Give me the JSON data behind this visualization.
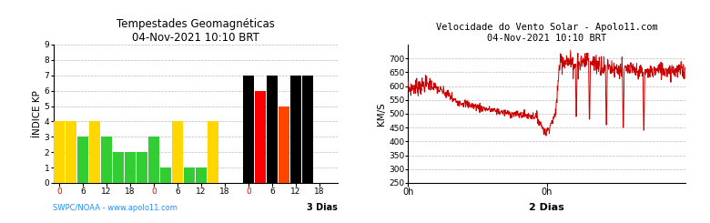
{
  "left": {
    "title": "Tempestades Geomagnéticas",
    "subtitle": "04-Nov-2021 10:10 BRT",
    "ylabel": "ÍNDICE KP",
    "source_label": "SWPC/NOAA - www.apolo11.com",
    "days_label": "3 Dias",
    "ylim": [
      0,
      9
    ],
    "yticks": [
      0,
      1,
      2,
      3,
      4,
      5,
      6,
      7,
      8,
      9
    ],
    "bar_values": [
      4,
      4,
      3,
      4,
      3,
      2,
      2,
      2,
      3,
      1,
      4,
      1,
      1,
      4,
      0,
      0,
      7,
      6,
      7,
      5,
      7,
      7,
      0,
      0
    ],
    "bar_colors": [
      "#FFD700",
      "#FFD700",
      "#32CD32",
      "#FFD700",
      "#32CD32",
      "#32CD32",
      "#32CD32",
      "#32CD32",
      "#32CD32",
      "#32CD32",
      "#FFD700",
      "#32CD32",
      "#32CD32",
      "#FFD700",
      "#32CD32",
      "#32CD32",
      "#000000",
      "#FF0000",
      "#000000",
      "#FF4500",
      "#000000",
      "#000000",
      "#32CD32",
      "#32CD32"
    ],
    "source_color": "#1E90FF",
    "bg_color": "#FFFFFF",
    "grid_color": "#BBBBBB"
  },
  "right": {
    "title": "Velocidade do Vento Solar - Apolo11.com",
    "subtitle": "04-Nov-2021 10:10 BRT",
    "ylabel": "KM/S",
    "days_label": "2 Dias",
    "ylim": [
      250,
      750
    ],
    "yticks": [
      250,
      300,
      350,
      400,
      450,
      500,
      550,
      600,
      650,
      700
    ],
    "xtick_labels": [
      "0h",
      "0h"
    ],
    "line_color": "#CC0000",
    "bg_color": "#FFFFFF",
    "grid_color": "#BBBBBB"
  }
}
